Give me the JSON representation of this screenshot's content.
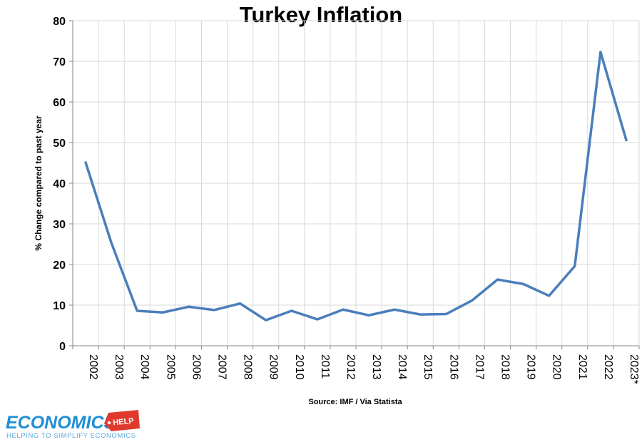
{
  "chart_data": {
    "type": "line",
    "title": "Turkey Inflation",
    "ylabel": "% Change compared to past year",
    "xlabel": "",
    "ylim": [
      0,
      80
    ],
    "yticks": [
      0,
      10,
      20,
      30,
      40,
      50,
      60,
      70,
      80
    ],
    "grid": true,
    "line_color": "#4a7ebb",
    "categories": [
      "2002",
      "2003",
      "2004",
      "2005",
      "2006",
      "2007",
      "2008",
      "2009",
      "2010",
      "2011",
      "2012",
      "2013",
      "2014",
      "2015",
      "2016",
      "2017",
      "2018",
      "2019",
      "2020",
      "2021",
      "2022",
      "2023*"
    ],
    "values": [
      45.1,
      25.3,
      8.6,
      8.2,
      9.6,
      8.8,
      10.4,
      6.3,
      8.6,
      6.5,
      8.9,
      7.5,
      8.9,
      7.7,
      7.8,
      11.1,
      16.3,
      15.2,
      12.3,
      19.6,
      72.3,
      50.6
    ],
    "source": "Source: IMF / Via Statista"
  },
  "logo": {
    "main": "ECONOMICS",
    "badge": "HELP",
    "tagline": "HELPING TO SIMPLIFY ECONOMICS",
    "color": "#1f8fd6",
    "badge_color": "#e03a2f"
  }
}
